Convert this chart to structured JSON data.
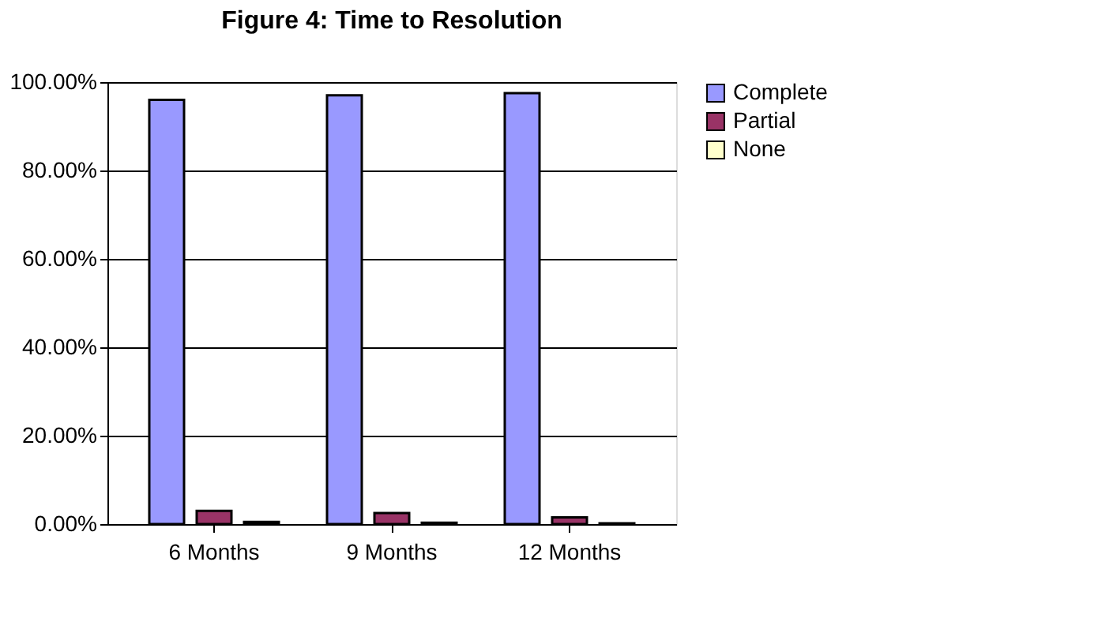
{
  "chart_data": {
    "type": "bar",
    "title": "Figure 4: Time to Resolution",
    "categories": [
      "6 Months",
      "9 Months",
      "12 Months"
    ],
    "series": [
      {
        "name": "Complete",
        "color": "#9999ff",
        "values": [
          96,
          97,
          97.5
        ]
      },
      {
        "name": "Partial",
        "color": "#993366",
        "values": [
          3,
          2.5,
          1.5
        ]
      },
      {
        "name": "None",
        "color": "#ffffcc",
        "values": [
          0.5,
          0.3,
          0.2
        ]
      }
    ],
    "ylim": [
      0,
      100
    ],
    "yticks": [
      {
        "value": 0,
        "label": "0.00%"
      },
      {
        "value": 20,
        "label": "20.00%"
      },
      {
        "value": 40,
        "label": "40.00%"
      },
      {
        "value": 60,
        "label": "60.00%"
      },
      {
        "value": 80,
        "label": "80.00%"
      },
      {
        "value": 100,
        "label": "100.00%"
      }
    ],
    "grid": "y",
    "legend": "right"
  }
}
